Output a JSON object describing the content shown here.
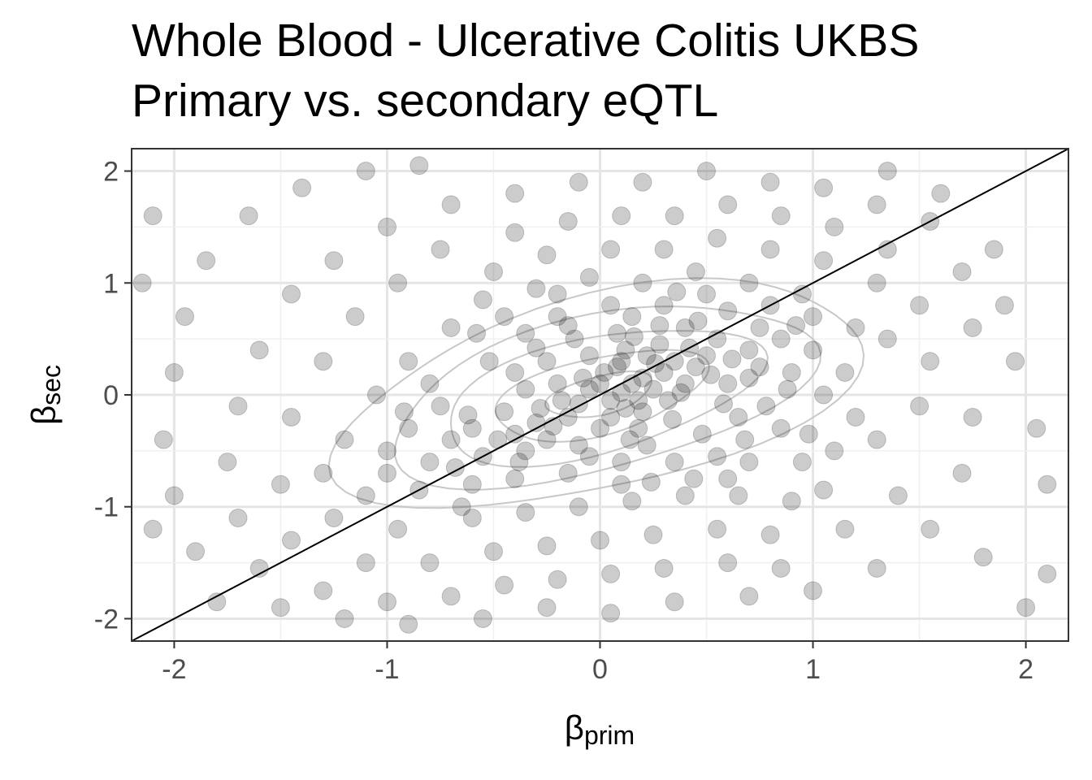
{
  "title_line1": "Whole Blood - Ulcerative Colitis UKBS",
  "title_line2": "Primary vs. secondary eQTL",
  "chart_data": {
    "type": "scatter",
    "xlabel": {
      "symbol": "β",
      "subscript": "prim"
    },
    "ylabel": {
      "symbol": "β",
      "subscript": "sec"
    },
    "xlim": [
      -2.2,
      2.2
    ],
    "ylim": [
      -2.2,
      2.2
    ],
    "x_ticks": [
      -2,
      -1,
      0,
      1,
      2
    ],
    "y_ticks": [
      -2,
      -1,
      0,
      1,
      2
    ],
    "x_tick_labels": [
      "-2",
      "-1",
      "0",
      "1",
      "2"
    ],
    "y_tick_labels": [
      "-2",
      "-1",
      "0",
      "1",
      "2"
    ],
    "grid": true,
    "reference_line": {
      "slope": 1,
      "intercept": 0,
      "color": "#000000"
    },
    "density_contours": {
      "color": "#c8c8c8",
      "center": [
        0,
        0
      ],
      "levels": 5
    },
    "point_color": "#000000",
    "point_opacity": 0.2,
    "points": [
      [
        -0.05,
        0.05
      ],
      [
        0.1,
        0.02
      ],
      [
        0.15,
        0.1
      ],
      [
        0.05,
        -0.05
      ],
      [
        -0.1,
        -0.08
      ],
      [
        0.2,
        0.15
      ],
      [
        0.25,
        0.05
      ],
      [
        0.0,
        0.1
      ],
      [
        -0.15,
        -0.2
      ],
      [
        0.3,
        0.2
      ],
      [
        -0.3,
        -0.25
      ],
      [
        -0.4,
        -0.35
      ],
      [
        0.35,
        0.3
      ],
      [
        0.4,
        0.1
      ],
      [
        0.1,
        0.3
      ],
      [
        -0.2,
        0.1
      ],
      [
        0.05,
        -0.2
      ],
      [
        0.2,
        -0.15
      ],
      [
        -0.25,
        -0.4
      ],
      [
        0.45,
        0.25
      ],
      [
        0.12,
        0.4
      ],
      [
        -0.05,
        0.35
      ],
      [
        0.28,
        0.45
      ],
      [
        0.5,
        0.35
      ],
      [
        -0.45,
        -0.15
      ],
      [
        -0.35,
        -0.5
      ],
      [
        0.18,
        -0.3
      ],
      [
        0.6,
        0.1
      ],
      [
        -0.6,
        -0.3
      ],
      [
        0.32,
        -0.05
      ],
      [
        0.08,
        0.55
      ],
      [
        -0.12,
        0.5
      ],
      [
        0.4,
        0.6
      ],
      [
        0.55,
        0.5
      ],
      [
        0.7,
        0.4
      ],
      [
        0.65,
        -0.2
      ],
      [
        -0.55,
        -0.55
      ],
      [
        -0.7,
        -0.4
      ],
      [
        0.22,
        -0.45
      ],
      [
        -0.1,
        -0.45
      ],
      [
        0.0,
        -0.3
      ],
      [
        0.15,
        0.7
      ],
      [
        -0.25,
        0.3
      ],
      [
        -0.4,
        0.2
      ],
      [
        0.75,
        0.6
      ],
      [
        0.85,
        0.5
      ],
      [
        0.9,
        0.2
      ],
      [
        -0.8,
        -0.6
      ],
      [
        -0.75,
        -0.1
      ],
      [
        0.48,
        -0.35
      ],
      [
        0.3,
        0.8
      ],
      [
        0.05,
        0.8
      ],
      [
        -0.2,
        0.7
      ],
      [
        -0.35,
        0.55
      ],
      [
        0.6,
        0.75
      ],
      [
        0.8,
        0.8
      ],
      [
        1.0,
        0.4
      ],
      [
        1.05,
        0.0
      ],
      [
        -1.0,
        -0.5
      ],
      [
        -0.9,
        -0.3
      ],
      [
        0.55,
        -0.55
      ],
      [
        0.35,
        -0.6
      ],
      [
        0.1,
        -0.6
      ],
      [
        -0.15,
        -0.7
      ],
      [
        -0.4,
        -0.75
      ],
      [
        -0.6,
        -0.8
      ],
      [
        0.7,
        -0.6
      ],
      [
        0.85,
        -0.3
      ],
      [
        -0.85,
        -0.85
      ],
      [
        0.95,
        -0.6
      ],
      [
        0.2,
        1.0
      ],
      [
        -0.05,
        1.05
      ],
      [
        -0.3,
        0.95
      ],
      [
        0.45,
        1.1
      ],
      [
        0.7,
        1.0
      ],
      [
        0.95,
        0.9
      ],
      [
        1.2,
        0.6
      ],
      [
        1.15,
        0.2
      ],
      [
        -1.1,
        -0.9
      ],
      [
        -1.2,
        -0.4
      ],
      [
        0.4,
        -0.9
      ],
      [
        0.15,
        -0.95
      ],
      [
        -0.1,
        -1.0
      ],
      [
        -0.35,
        -1.05
      ],
      [
        0.65,
        -0.9
      ],
      [
        0.9,
        -0.95
      ],
      [
        1.1,
        -0.5
      ],
      [
        -0.6,
        -1.1
      ],
      [
        -0.95,
        -1.2
      ],
      [
        1.2,
        -0.2
      ],
      [
        0.3,
        1.3
      ],
      [
        0.05,
        1.3
      ],
      [
        -0.25,
        1.25
      ],
      [
        -0.5,
        1.1
      ],
      [
        0.55,
        1.4
      ],
      [
        0.8,
        1.3
      ],
      [
        1.05,
        1.2
      ],
      [
        1.3,
        1.0
      ],
      [
        1.35,
        0.5
      ],
      [
        -0.55,
        0.85
      ],
      [
        -0.7,
        0.6
      ],
      [
        -0.9,
        0.3
      ],
      [
        -1.05,
        0.0
      ],
      [
        -1.3,
        -0.7
      ],
      [
        -1.25,
        -1.1
      ],
      [
        0.25,
        -1.25
      ],
      [
        0.0,
        -1.3
      ],
      [
        -0.25,
        -1.35
      ],
      [
        0.55,
        -1.2
      ],
      [
        0.8,
        -1.25
      ],
      [
        1.05,
        -0.85
      ],
      [
        1.3,
        -0.4
      ],
      [
        -0.5,
        -1.4
      ],
      [
        -0.8,
        -1.5
      ],
      [
        -1.1,
        -1.5
      ],
      [
        0.35,
        1.6
      ],
      [
        0.1,
        1.6
      ],
      [
        -0.15,
        1.55
      ],
      [
        -0.4,
        1.45
      ],
      [
        0.6,
        1.7
      ],
      [
        0.85,
        1.6
      ],
      [
        1.1,
        1.5
      ],
      [
        1.35,
        1.3
      ],
      [
        1.5,
        0.8
      ],
      [
        1.55,
        0.3
      ],
      [
        -0.75,
        1.3
      ],
      [
        -0.95,
        1.0
      ],
      [
        -1.15,
        0.7
      ],
      [
        -1.3,
        0.3
      ],
      [
        -1.45,
        -0.2
      ],
      [
        -1.5,
        -0.8
      ],
      [
        -1.45,
        -1.3
      ],
      [
        0.3,
        -1.55
      ],
      [
        0.05,
        -1.6
      ],
      [
        -0.2,
        -1.65
      ],
      [
        0.6,
        -1.5
      ],
      [
        0.85,
        -1.55
      ],
      [
        1.15,
        -1.2
      ],
      [
        1.4,
        -0.9
      ],
      [
        1.5,
        -0.1
      ],
      [
        -0.45,
        -1.7
      ],
      [
        -0.7,
        -1.8
      ],
      [
        -1.0,
        -1.85
      ],
      [
        -1.3,
        -1.75
      ],
      [
        0.2,
        1.9
      ],
      [
        -0.1,
        1.9
      ],
      [
        -0.4,
        1.8
      ],
      [
        0.5,
        2.0
      ],
      [
        0.8,
        1.9
      ],
      [
        1.05,
        1.85
      ],
      [
        1.3,
        1.7
      ],
      [
        1.55,
        1.55
      ],
      [
        1.7,
        1.1
      ],
      [
        1.75,
        0.6
      ],
      [
        -0.7,
        1.7
      ],
      [
        -1.0,
        1.5
      ],
      [
        -1.25,
        1.2
      ],
      [
        -1.45,
        0.9
      ],
      [
        -1.6,
        0.4
      ],
      [
        -1.7,
        -0.1
      ],
      [
        -1.75,
        -0.6
      ],
      [
        -1.7,
        -1.1
      ],
      [
        -1.6,
        -1.55
      ],
      [
        0.35,
        -1.85
      ],
      [
        0.05,
        -1.95
      ],
      [
        -0.25,
        -1.9
      ],
      [
        0.7,
        -1.8
      ],
      [
        1.0,
        -1.75
      ],
      [
        1.3,
        -1.55
      ],
      [
        1.55,
        -1.2
      ],
      [
        1.7,
        -0.7
      ],
      [
        1.75,
        -0.2
      ],
      [
        -0.55,
        -2.0
      ],
      [
        -0.9,
        -2.05
      ],
      [
        -1.2,
        -2.0
      ],
      [
        -1.5,
        -1.9
      ],
      [
        1.9,
        0.8
      ],
      [
        1.95,
        0.3
      ],
      [
        2.05,
        -0.3
      ],
      [
        2.1,
        -0.8
      ],
      [
        1.85,
        1.3
      ],
      [
        1.6,
        1.8
      ],
      [
        1.35,
        2.0
      ],
      [
        -1.85,
        1.2
      ],
      [
        -1.95,
        0.7
      ],
      [
        -2.0,
        0.2
      ],
      [
        -2.05,
        -0.4
      ],
      [
        -2.0,
        -0.9
      ],
      [
        -1.9,
        -1.4
      ],
      [
        -1.8,
        -1.85
      ],
      [
        -1.65,
        1.6
      ],
      [
        -1.4,
        1.85
      ],
      [
        -1.1,
        2.0
      ],
      [
        -0.85,
        2.05
      ],
      [
        2.1,
        -1.6
      ],
      [
        2.0,
        -1.9
      ],
      [
        1.8,
        -1.45
      ],
      [
        -2.1,
        1.6
      ],
      [
        -2.15,
        1.0
      ],
      [
        -2.1,
        -1.2
      ],
      [
        0.02,
        0.2
      ],
      [
        0.18,
        -0.05
      ],
      [
        -0.08,
        0.15
      ],
      [
        0.12,
        -0.12
      ],
      [
        0.26,
        0.28
      ],
      [
        -0.18,
        -0.05
      ],
      [
        0.38,
        0.02
      ],
      [
        -0.28,
        -0.12
      ],
      [
        0.08,
        0.25
      ],
      [
        0.22,
        0.35
      ],
      [
        -0.35,
        0.05
      ],
      [
        0.42,
        0.42
      ],
      [
        -0.48,
        -0.4
      ],
      [
        0.52,
        0.18
      ],
      [
        -0.05,
        -0.55
      ],
      [
        0.62,
        0.32
      ],
      [
        -0.62,
        -0.18
      ],
      [
        0.16,
        0.52
      ],
      [
        0.34,
        -0.22
      ],
      [
        -0.22,
        -0.28
      ],
      [
        0.7,
        0.15
      ],
      [
        -0.68,
        -0.65
      ],
      [
        0.46,
        0.66
      ],
      [
        -0.15,
        0.62
      ],
      [
        0.58,
        -0.08
      ],
      [
        -0.52,
        0.3
      ],
      [
        0.28,
        0.62
      ],
      [
        0.78,
        -0.1
      ],
      [
        -0.38,
        -0.6
      ],
      [
        0.14,
        -0.4
      ],
      [
        0.92,
        0.62
      ],
      [
        -0.92,
        -0.15
      ],
      [
        0.68,
        -0.4
      ],
      [
        -0.3,
        0.42
      ],
      [
        0.44,
        -0.75
      ],
      [
        -0.58,
        0.55
      ],
      [
        0.24,
        -0.78
      ],
      [
        1.0,
        0.7
      ],
      [
        -1.0,
        -0.7
      ],
      [
        0.5,
        0.9
      ],
      [
        -0.65,
        -1.0
      ],
      [
        0.75,
        0.25
      ],
      [
        0.36,
        0.92
      ],
      [
        -0.45,
        0.7
      ],
      [
        0.88,
        0.05
      ],
      [
        -0.8,
        0.1
      ],
      [
        0.1,
        -0.8
      ],
      [
        0.6,
        -0.75
      ],
      [
        -0.2,
        0.9
      ],
      [
        0.98,
        -0.35
      ]
    ]
  }
}
